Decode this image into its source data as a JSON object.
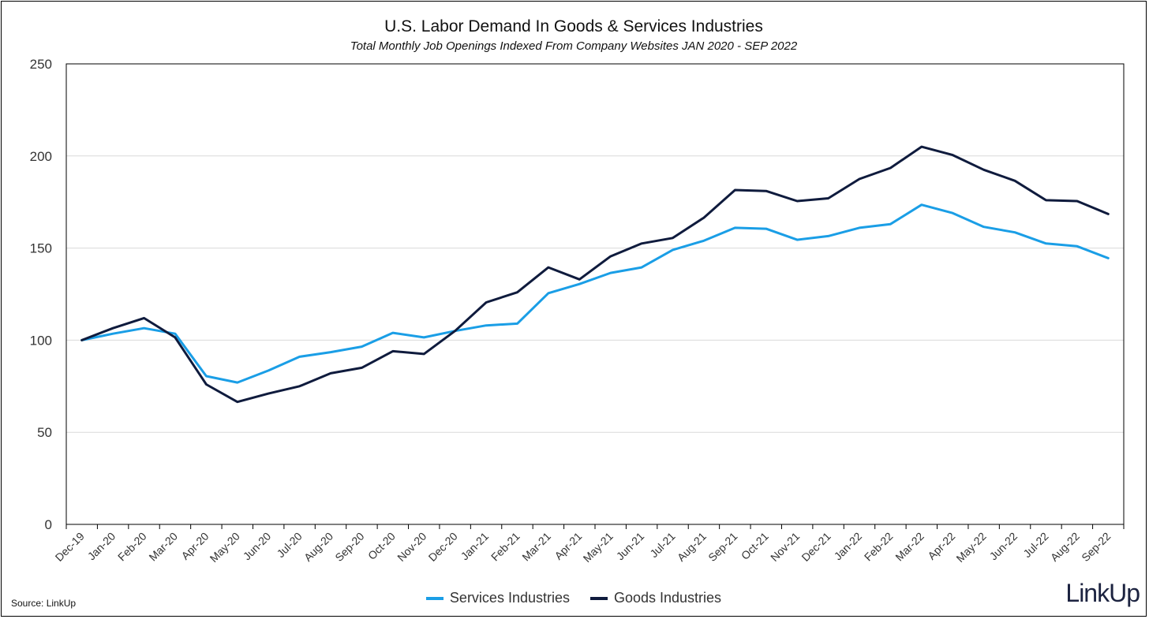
{
  "chart_data": {
    "type": "line",
    "title": "U.S. Labor Demand In Goods & Services Industries",
    "subtitle": "Total Monthly Job Openings Indexed From Company Websites JAN 2020 - SEP 2022",
    "categories": [
      "Dec-19",
      "Jan-20",
      "Feb-20",
      "Mar-20",
      "Apr-20",
      "May-20",
      "Jun-20",
      "Jul-20",
      "Aug-20",
      "Sep-20",
      "Oct-20",
      "Nov-20",
      "Dec-20",
      "Jan-21",
      "Feb-21",
      "Mar-21",
      "Apr-21",
      "May-21",
      "Jun-21",
      "Jul-21",
      "Aug-21",
      "Sep-21",
      "Oct-21",
      "Nov-21",
      "Dec-21",
      "Jan-22",
      "Feb-22",
      "Mar-22",
      "Apr-22",
      "May-22",
      "Jun-22",
      "Jul-22",
      "Aug-22",
      "Sep-22"
    ],
    "series": [
      {
        "name": "Services Industries",
        "color": "#1a9ee6",
        "values": [
          100,
          103.5,
          106.5,
          103.5,
          80.5,
          77,
          83.5,
          91,
          93.5,
          96.5,
          104,
          101.5,
          105,
          108,
          109,
          125.5,
          130.5,
          136.5,
          139.5,
          149,
          154,
          161,
          160.5,
          154.5,
          156.5,
          161,
          163,
          173.5,
          169,
          161.5,
          158.5,
          152.5,
          151,
          144.5
        ]
      },
      {
        "name": "Goods Industries",
        "color": "#0f1b3d",
        "values": [
          100,
          106.5,
          112,
          101.5,
          76,
          66.5,
          71,
          75,
          82,
          85,
          94,
          92.5,
          105,
          120.5,
          126,
          139.5,
          133,
          145.5,
          152.5,
          155.5,
          166.5,
          181.5,
          181,
          175.5,
          177,
          187.5,
          193.5,
          205,
          200.5,
          192.5,
          186.5,
          176,
          175.5,
          168.5
        ]
      }
    ],
    "yticks": [
      "0",
      "50",
      "100",
      "150",
      "200",
      "250"
    ],
    "ylim": [
      0,
      250
    ],
    "grid": true,
    "legend_position": "bottom"
  },
  "footer": {
    "source": "Source: LinkUp",
    "logo": "LinkUp"
  }
}
